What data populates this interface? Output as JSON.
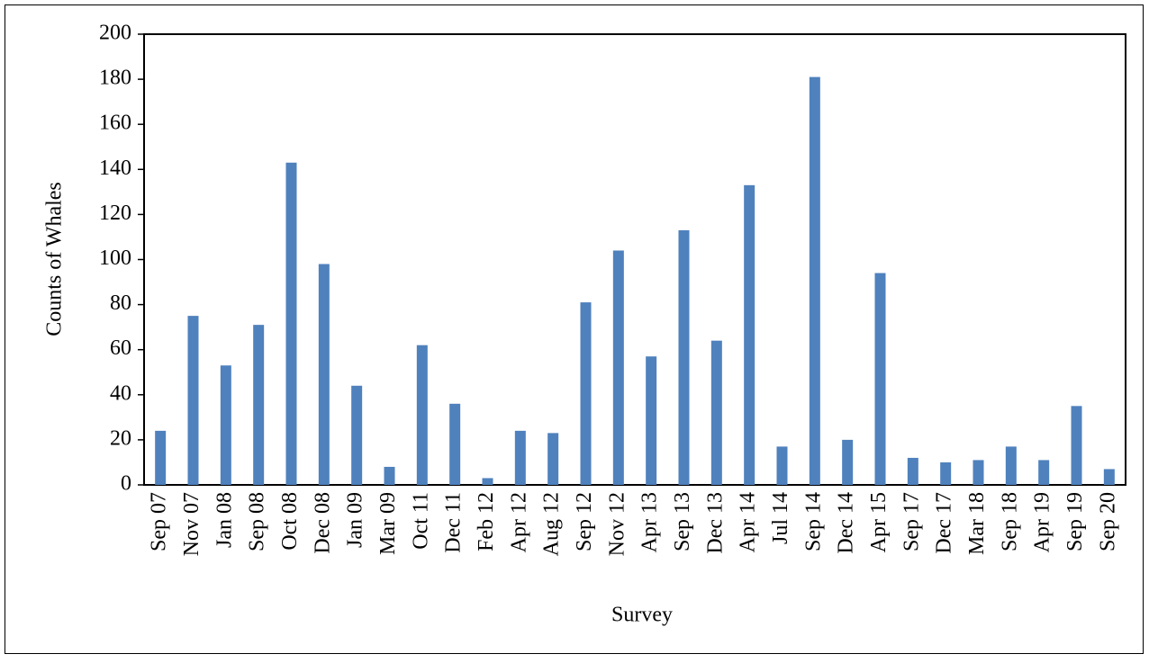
{
  "chart_data": {
    "type": "bar",
    "x_label": "Survey",
    "y_label": "Counts of Whales",
    "categories": [
      "Sep 07",
      "Nov 07",
      "Jan 08",
      "Sep 08",
      "Oct 08",
      "Dec 08",
      "Jan 09",
      "Mar 09",
      "Oct 11",
      "Dec 11",
      "Feb 12",
      "Apr 12",
      "Aug 12",
      "Sep 12",
      "Nov 12",
      "Apr 13",
      "Sep 13",
      "Dec 13",
      "Apr 14",
      "Jul 14",
      "Sep 14",
      "Dec 14",
      "Apr 15",
      "Sep 17",
      "Dec 17",
      "Mar 18",
      "Sep 18",
      "Apr 19",
      "Sep 19",
      "Sep 20"
    ],
    "values": [
      24,
      75,
      53,
      71,
      143,
      98,
      44,
      8,
      62,
      36,
      3,
      24,
      23,
      81,
      104,
      57,
      113,
      64,
      133,
      17,
      181,
      20,
      94,
      12,
      10,
      11,
      17,
      11,
      35,
      7
    ],
    "color": "#4f81bd",
    "ylim": [
      0,
      200
    ],
    "yticks": [
      0,
      20,
      40,
      60,
      80,
      100,
      120,
      140,
      160,
      180,
      200
    ],
    "grid": false
  }
}
